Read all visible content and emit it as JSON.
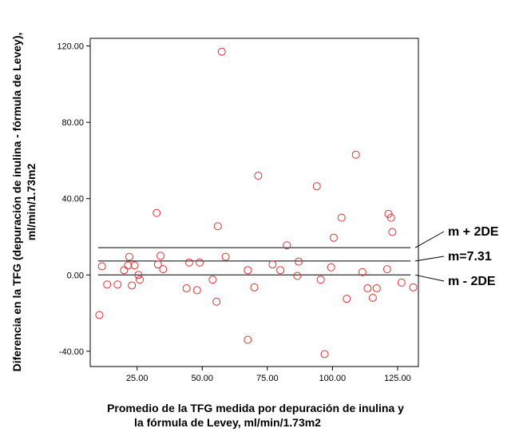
{
  "chart_data": {
    "type": "scatter",
    "xlabel_lines": [
      "Promedio de la TFG medida por depuración de inulina y",
      "la fórmula de Levey,  ml/min/1.73m2"
    ],
    "ylabel_lines": [
      "Diferencia en la TFG  (depuración de inulina - fórmula de Levey),",
      "ml/min/1.73m2"
    ],
    "xlim": [
      7,
      133
    ],
    "ylim": [
      -48,
      124
    ],
    "xticks": [
      25,
      50,
      75,
      100,
      125
    ],
    "xtick_labels": [
      "25.00",
      "50.00",
      "75.00",
      "100.00",
      "125.00"
    ],
    "yticks": [
      -40,
      0,
      40,
      80,
      120
    ],
    "ytick_labels": [
      "-40.00",
      "0.00",
      "40.00",
      "80.00",
      "120.00"
    ],
    "grid": false,
    "marker_color": "#e03030",
    "reference_lines": [
      {
        "y": 14.3,
        "label": "m + 2DE"
      },
      {
        "y": 7.31,
        "label": "m=7.31"
      },
      {
        "y": 0.0,
        "label": "m - 2DE"
      }
    ],
    "points": [
      [
        10.5,
        -21
      ],
      [
        11.5,
        4.5
      ],
      [
        13.5,
        -5
      ],
      [
        17.5,
        -5
      ],
      [
        20,
        2.5
      ],
      [
        21.5,
        5
      ],
      [
        22,
        9.5
      ],
      [
        23,
        -5.5
      ],
      [
        24,
        5
      ],
      [
        25.5,
        0
      ],
      [
        26,
        -2.5
      ],
      [
        32.5,
        32.5
      ],
      [
        33,
        5.5
      ],
      [
        34,
        10
      ],
      [
        35,
        3
      ],
      [
        44,
        -7
      ],
      [
        45,
        6.5
      ],
      [
        48,
        -8
      ],
      [
        49,
        6.5
      ],
      [
        54,
        -2.5
      ],
      [
        55.5,
        -14
      ],
      [
        56,
        25.5
      ],
      [
        57.5,
        117
      ],
      [
        59,
        9.5
      ],
      [
        67.5,
        2.5
      ],
      [
        67.5,
        -34
      ],
      [
        70,
        -6.5
      ],
      [
        71.5,
        52
      ],
      [
        77,
        5.5
      ],
      [
        80,
        2.5
      ],
      [
        82.5,
        15.5
      ],
      [
        86.5,
        -0.5
      ],
      [
        87,
        7
      ],
      [
        94,
        46.5
      ],
      [
        95.5,
        -2.5
      ],
      [
        97,
        -41.5
      ],
      [
        99.5,
        4
      ],
      [
        100.5,
        19.5
      ],
      [
        103.5,
        30
      ],
      [
        105.5,
        -12.5
      ],
      [
        109,
        63
      ],
      [
        111.5,
        1.5
      ],
      [
        113.5,
        -7
      ],
      [
        115.5,
        -12
      ],
      [
        117,
        -7
      ],
      [
        121,
        3
      ],
      [
        121.5,
        32
      ],
      [
        122.5,
        30
      ],
      [
        123,
        22.5
      ],
      [
        126.5,
        -4
      ],
      [
        131,
        -6.5
      ]
    ]
  }
}
